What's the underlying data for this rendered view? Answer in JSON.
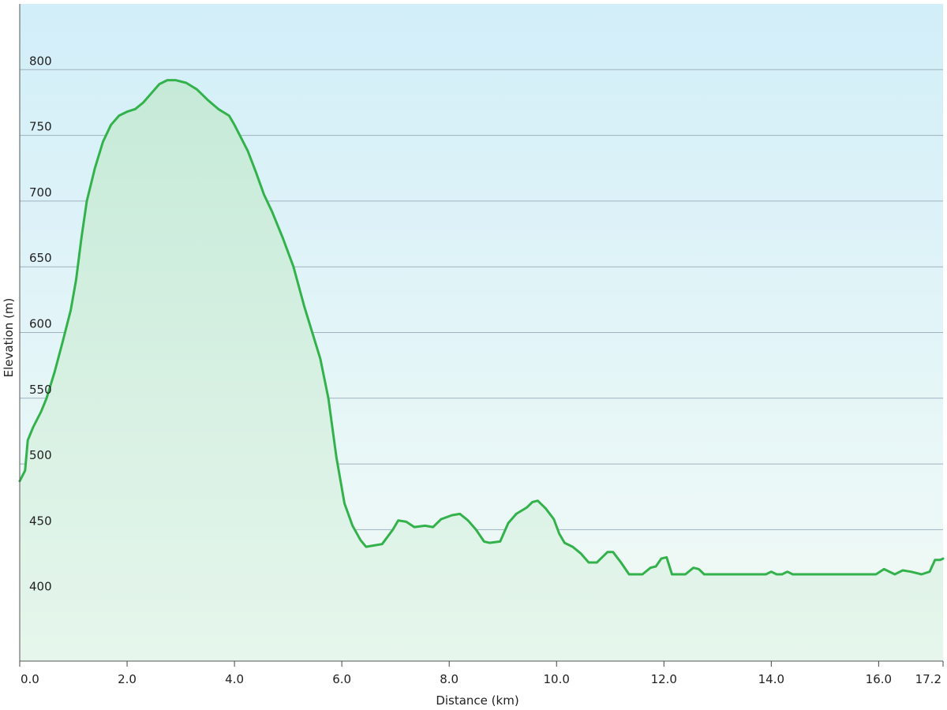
{
  "chart_data": {
    "type": "area",
    "title": "",
    "xlabel": "Distance  (km)",
    "ylabel": "Elevation (m)",
    "xlim": [
      0,
      17.2
    ],
    "ylim": [
      350,
      850
    ],
    "x_ticks": [
      "0.0",
      "2.0",
      "4.0",
      "6.0",
      "8.0",
      "10.0",
      "12.0",
      "14.0",
      "16.0",
      "17.2"
    ],
    "x_tick_values": [
      0,
      2,
      4,
      6,
      8,
      10,
      12,
      14,
      16,
      17.2
    ],
    "y_ticks": [
      "400",
      "450",
      "500",
      "550",
      "600",
      "650",
      "700",
      "750",
      "800"
    ],
    "y_tick_values": [
      400,
      450,
      500,
      550,
      600,
      650,
      700,
      750,
      800
    ],
    "grid": "horizontal",
    "colors": {
      "line": "#33b24c",
      "fill_top": "#c6ead8",
      "fill_bottom": "#e6f6ec",
      "bg_top": "#d2eef9",
      "bg_bottom": "#f3fbf6",
      "grid": "#9fb2bd"
    },
    "series": [
      {
        "x": [
          0.0,
          0.1,
          0.15,
          0.25,
          0.4,
          0.5,
          0.65,
          0.8,
          0.95,
          1.05,
          1.15,
          1.25,
          1.4,
          1.55,
          1.7,
          1.85,
          2.0,
          2.15,
          2.3,
          2.45,
          2.6,
          2.75,
          2.9,
          3.1,
          3.3,
          3.5,
          3.7,
          3.9,
          4.0,
          4.1,
          4.25,
          4.4,
          4.55,
          4.7,
          4.9,
          5.1,
          5.3,
          5.45,
          5.6,
          5.75,
          5.9,
          6.05,
          6.2,
          6.35,
          6.45,
          6.6,
          6.75,
          6.95,
          7.05,
          7.2,
          7.35,
          7.55,
          7.7,
          7.85,
          8.05,
          8.2,
          8.35,
          8.5,
          8.65,
          8.75,
          8.95,
          9.1,
          9.25,
          9.45,
          9.55,
          9.65,
          9.8,
          9.95,
          10.05,
          10.15,
          10.3,
          10.45,
          10.6,
          10.75,
          10.95,
          11.05,
          11.2,
          11.35,
          11.6,
          11.75,
          11.85,
          11.95,
          12.05,
          12.15,
          12.4,
          12.55,
          12.65,
          12.75,
          13.0,
          13.5,
          13.9,
          14.0,
          14.1,
          14.2,
          14.3,
          14.4,
          14.8,
          15.2,
          15.6,
          15.95,
          16.1,
          16.3,
          16.45,
          16.6,
          16.8,
          16.95,
          17.05,
          17.15,
          17.2
        ],
        "y": [
          487,
          495,
          518,
          528,
          540,
          550,
          570,
          593,
          617,
          640,
          672,
          700,
          725,
          745,
          758,
          765,
          768,
          770,
          775,
          782,
          789,
          792,
          792,
          790,
          785,
          777,
          770,
          765,
          758,
          750,
          738,
          722,
          705,
          692,
          672,
          650,
          620,
          600,
          580,
          550,
          505,
          470,
          453,
          442,
          437,
          438,
          439,
          450,
          457,
          456,
          452,
          453,
          452,
          458,
          461,
          462,
          457,
          450,
          441,
          440,
          441,
          455,
          462,
          467,
          471,
          472,
          466,
          458,
          447,
          440,
          437,
          432,
          425,
          425,
          433,
          433,
          425,
          416,
          416,
          421,
          422,
          428,
          429,
          416,
          416,
          421,
          420,
          416,
          416,
          416,
          416,
          418,
          416,
          416,
          418,
          416,
          416,
          416,
          416,
          416,
          420,
          416,
          419,
          418,
          416,
          418,
          427,
          427,
          428
        ]
      }
    ]
  }
}
